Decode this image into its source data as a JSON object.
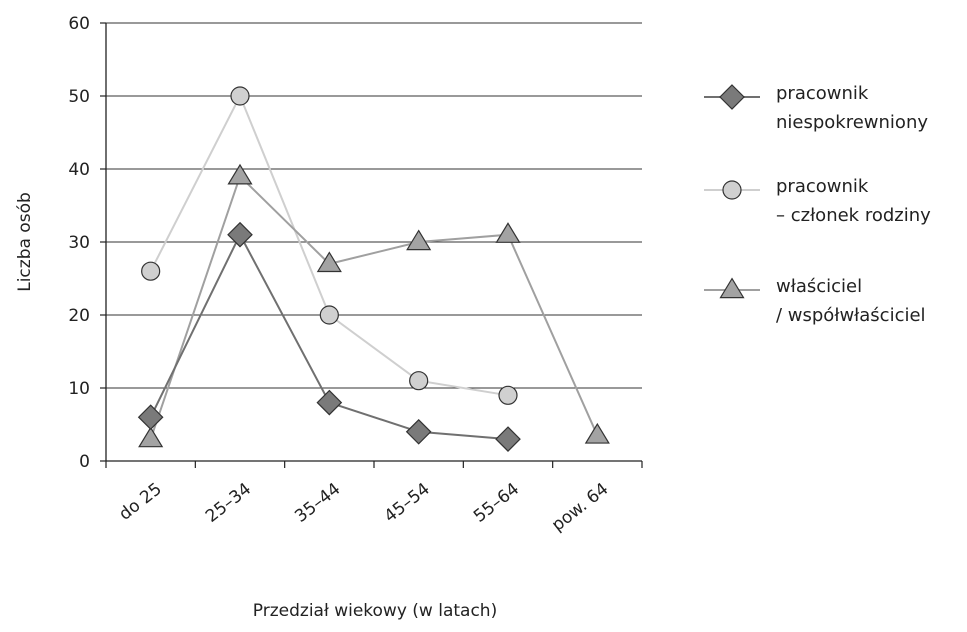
{
  "chart_data": {
    "type": "line",
    "title": "",
    "xlabel": "Przedział wiekowy (w latach)",
    "ylabel": "Liczba osób",
    "ylim": [
      0,
      60
    ],
    "yticks": [
      "0",
      "10",
      "20",
      "30",
      "40",
      "50",
      "60"
    ],
    "grid": true,
    "legend_position": "right",
    "categories": [
      "do 25",
      "25–34",
      "35–44",
      "45–54",
      "55–64",
      "pow. 64"
    ],
    "series": [
      {
        "name": "pracownik niespokrewniony",
        "name_lines": [
          "pracownik",
          "niespokrewniony"
        ],
        "marker": "diamond",
        "line_color": "#707070",
        "marker_fill": "#7a7a7a",
        "values": [
          6,
          31,
          8,
          4,
          3,
          null
        ]
      },
      {
        "name": "pracownik – członek rodziny",
        "name_lines": [
          "pracownik",
          "– członek rodziny"
        ],
        "marker": "circle",
        "line_color": "#cfcfcf",
        "marker_fill": "#d0d0d0",
        "values": [
          26,
          50,
          20,
          11,
          9,
          null
        ]
      },
      {
        "name": "właściciel / współwłaściciel",
        "name_lines": [
          "właściciel",
          "/ współwłaściciel"
        ],
        "marker": "triangle",
        "line_color": "#a0a0a0",
        "marker_fill": "#a3a3a3",
        "values": [
          3,
          39,
          27,
          30,
          31,
          3.5
        ]
      }
    ]
  }
}
